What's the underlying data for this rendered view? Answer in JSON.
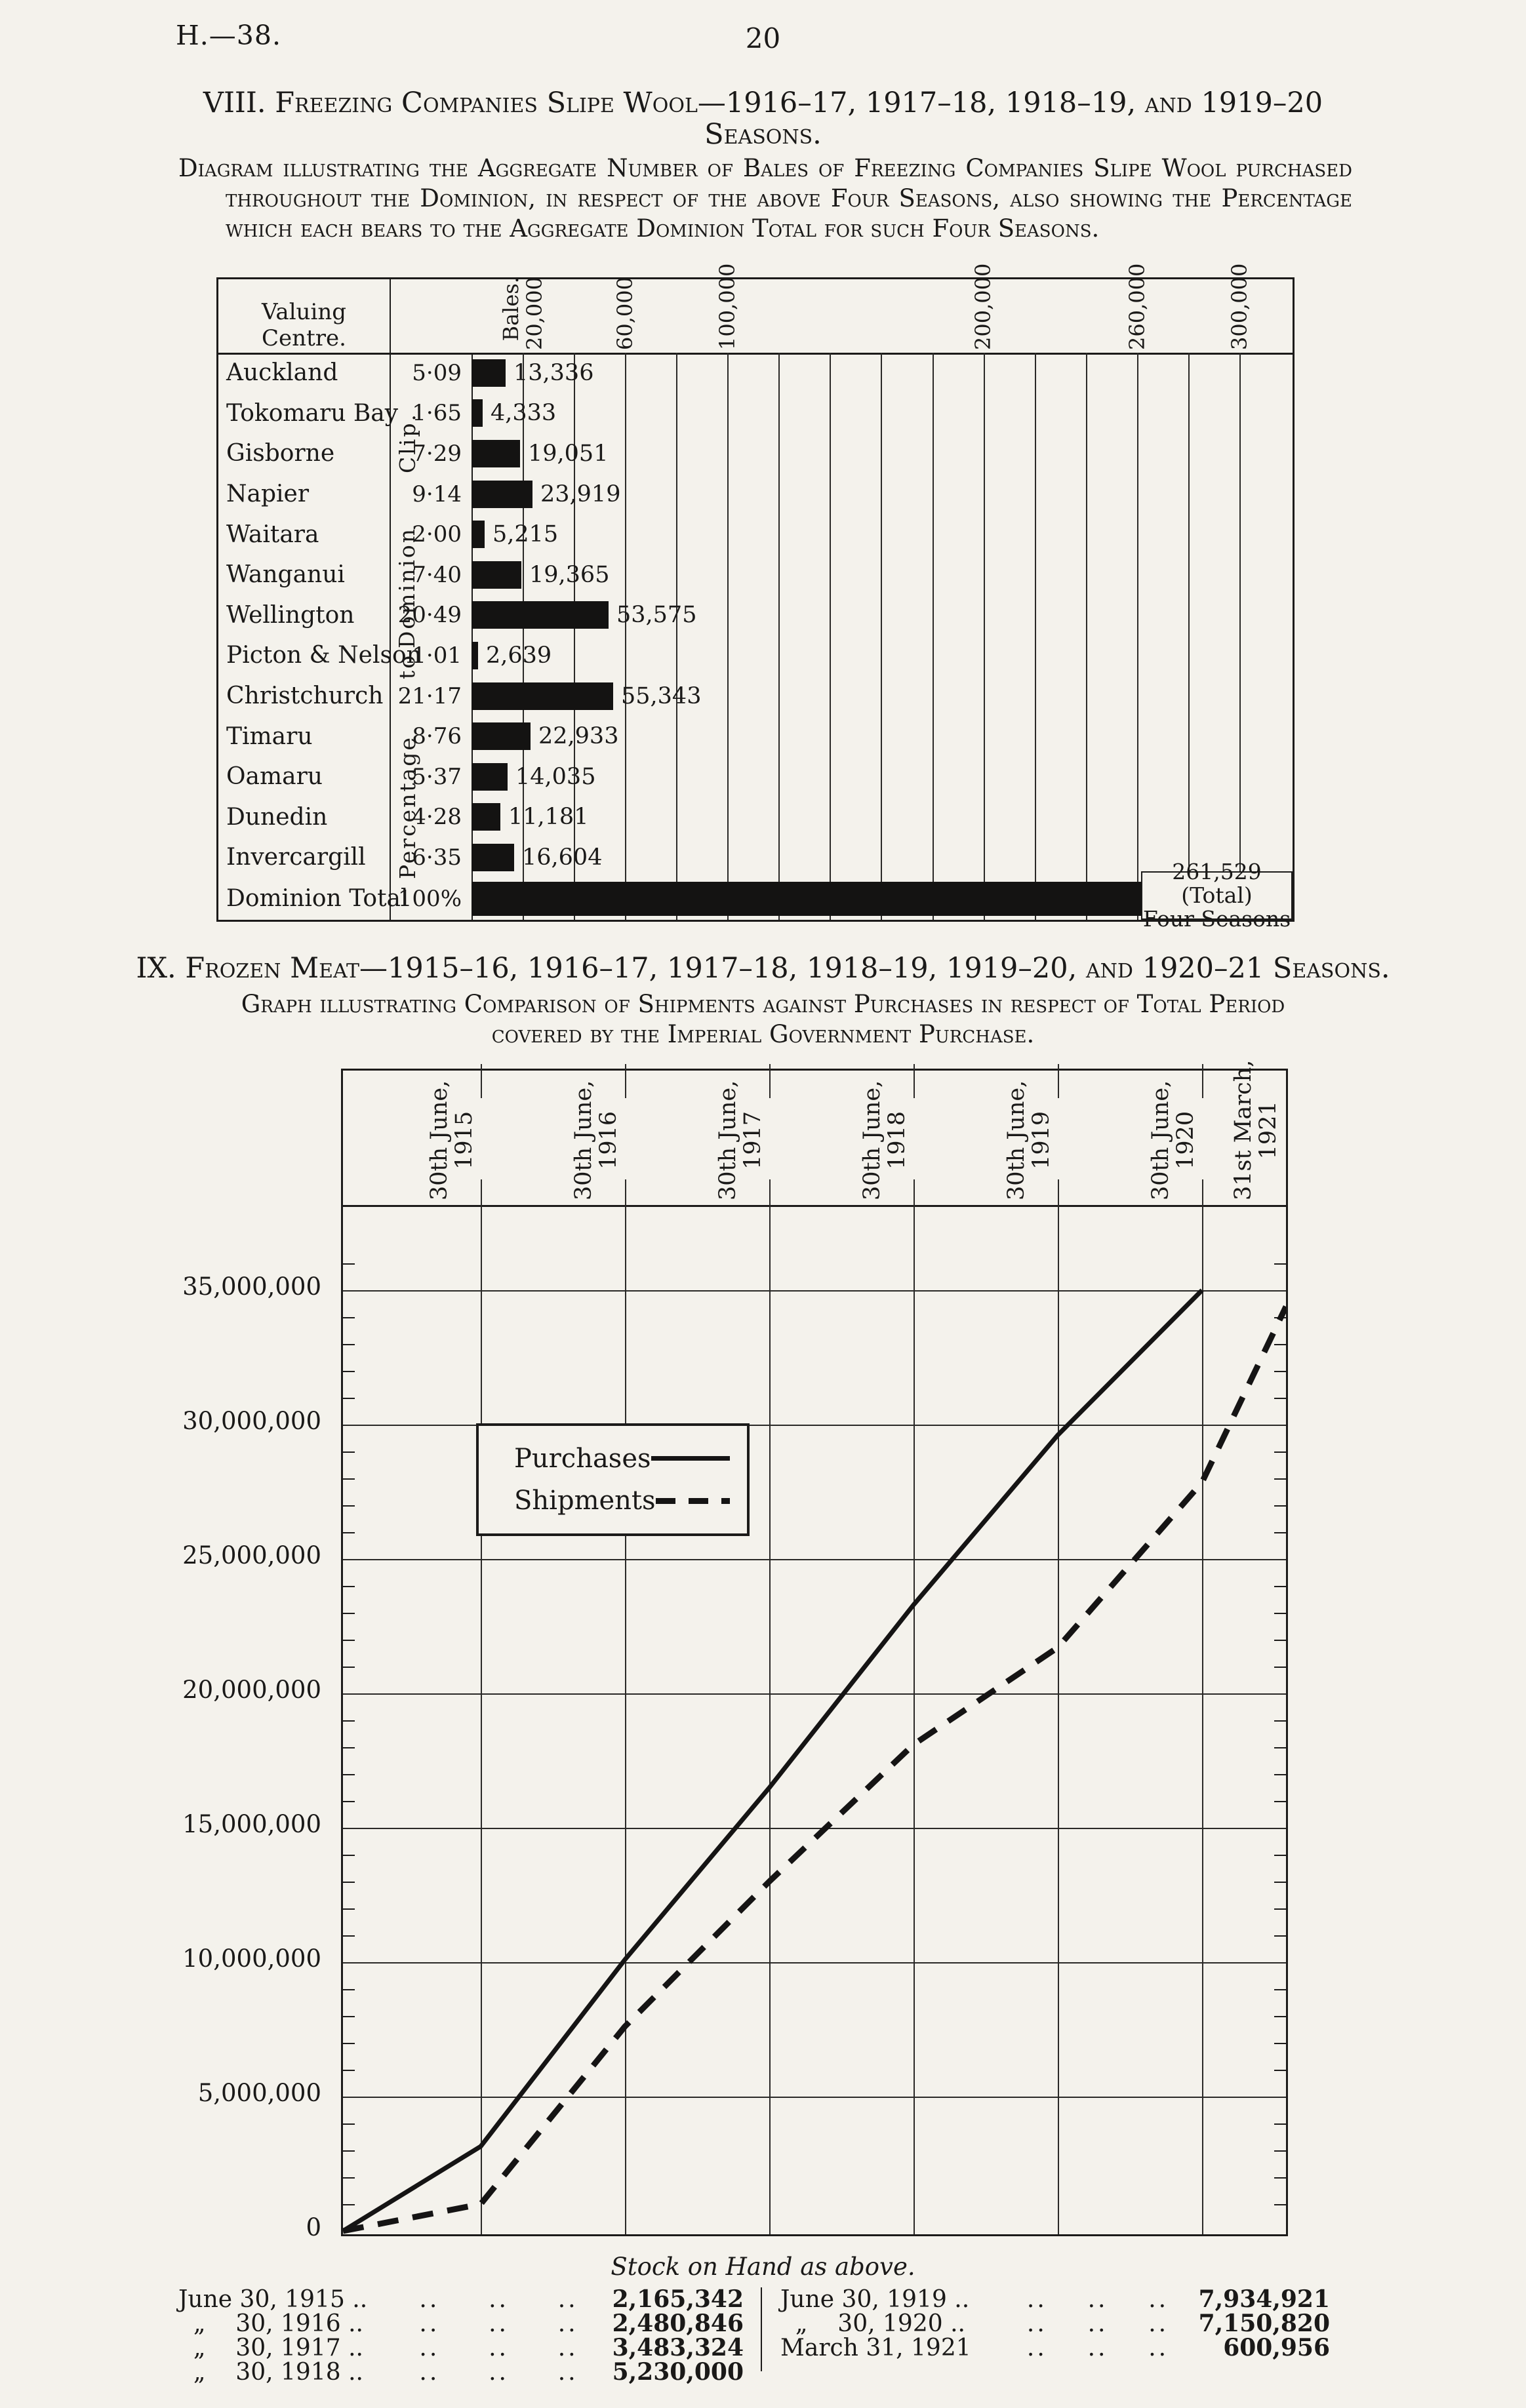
{
  "page": {
    "doc_ref": "H.—38.",
    "page_number": "20"
  },
  "section_viii": {
    "title_line1": "VIII. Freezing Companies Slipe Wool—1916–17, 1917–18, 1918–19, and 1919–20",
    "title_line2": "Seasons.",
    "description": "Diagram illustrating the Aggregate Number of Bales of Freezing Companies Slipe Wool purchased throughout the Dominion, in respect of the above Four Seasons, also showing the Percentage which each bears to the Aggregate Dominion Total for such Four Seasons."
  },
  "section_ix": {
    "title": "IX. Frozen Meat—1915–16, 1916–17, 1917–18, 1918–19, 1919–20, and 1920–21 Seasons.",
    "description_line1": "Graph illustrating Comparison of Shipments against Purchases in respect of Total Period",
    "description_line2": "covered by the Imperial Government Purchase."
  },
  "wool_chart": {
    "column_header": "Valuing Centre.",
    "side_label": "Percentage to Dominion Clip.",
    "side_label_words": [
      "Clip.",
      "Dominion",
      "to",
      "Percentage"
    ],
    "total_note_line1": "261,529 (Total)",
    "total_note_line2": "Four Seasons"
  },
  "stock_table": {
    "title": "Stock on Hand as above.",
    "leader": "..",
    "left_rows": [
      {
        "label": "June 30, 1915 ..",
        "value": "2,165,342"
      },
      {
        "label": "  „    30, 1916 ..",
        "value": "2,480,846"
      },
      {
        "label": "  „    30, 1917 ..",
        "value": "3,483,324"
      },
      {
        "label": "  „    30, 1918 ..",
        "value": "5,230,000"
      }
    ],
    "right_rows": [
      {
        "label": "June 30, 1919 ..",
        "value": "7,934,921"
      },
      {
        "label": "  „    30, 1920 ..",
        "value": "7,150,820"
      },
      {
        "label": "March 31, 1921",
        "value": "600,956"
      }
    ]
  },
  "chart_data": [
    {
      "type": "bar",
      "title": "Freezing Companies Slipe Wool — bales purchased by valuing centre, four seasons 1916–17 to 1919–20",
      "orientation": "horizontal",
      "categories": [
        "Auckland",
        "Tokomaru Bay",
        "Gisborne",
        "Napier",
        "Waitara",
        "Wanganui",
        "Wellington",
        "Picton & Nelson",
        "Christchurch",
        "Timaru",
        "Oamaru",
        "Dunedin",
        "Invercargill",
        "Dominion Total"
      ],
      "percents": [
        5.09,
        1.65,
        7.29,
        9.14,
        2.0,
        7.4,
        20.49,
        1.01,
        21.17,
        8.76,
        5.37,
        4.28,
        6.35,
        100
      ],
      "percent_labels": [
        "5·09",
        "1·65",
        "7·29",
        "9·14",
        "2·00",
        "7·40",
        "20·49",
        "1·01",
        "21·17",
        "8·76",
        "5·37",
        "4·28",
        "6·35",
        "100%"
      ],
      "values": [
        13336,
        4333,
        19051,
        23919,
        5215,
        19365,
        53575,
        2639,
        55343,
        22933,
        14035,
        11181,
        16604,
        261529
      ],
      "value_labels": [
        "13,336",
        "4,333",
        "19,051",
        "23,919",
        "5,215",
        "19,365",
        "53,575",
        "2,639",
        "55,343",
        "22,933",
        "14,035",
        "11,181",
        "16,604",
        ""
      ],
      "axis": {
        "unit_label": "Bales.",
        "tick_labels": [
          "20,000",
          "60,000",
          "100,000",
          "200,000",
          "260,000",
          "300,000"
        ],
        "tick_values": [
          20000,
          60000,
          100000,
          200000,
          260000,
          300000
        ],
        "grid_step": 20000,
        "max": 300000
      },
      "total": {
        "value": 261529,
        "note": "261,529 (Total) Four Seasons"
      }
    },
    {
      "type": "line",
      "title": "Frozen meat — shipments against purchases, Imperial Government Purchase period",
      "x_labels": [
        [
          "30th June,",
          "1915"
        ],
        [
          "30th June,",
          "1916"
        ],
        [
          "30th June,",
          "1917"
        ],
        [
          "30th June,",
          "1918"
        ],
        [
          "30th June,",
          "1919"
        ],
        [
          "30th June,",
          "1920"
        ],
        [
          "31st March,",
          "1921"
        ]
      ],
      "y_tick_labels": [
        "35,000,000",
        "30,000,000",
        "25,000,000",
        "20,000,000",
        "15,000,000",
        "10,000,000",
        "5,000,000",
        "0"
      ],
      "ylim": [
        0,
        37500000
      ],
      "grid": true,
      "legend_position": "upper-left-box",
      "series": [
        {
          "name": "Purchases",
          "style": "solid",
          "x": [
            "start",
            "1915-06-30",
            "1916-06-30",
            "1917-06-30",
            "1918-06-30",
            "1919-06-30",
            "1920-06-30"
          ],
          "values": [
            0,
            3150000,
            10100000,
            16500000,
            23300000,
            29600000,
            35000000
          ]
        },
        {
          "name": "Shipments",
          "style": "dashed",
          "x": [
            "start",
            "1915-06-30",
            "1916-06-30",
            "1917-06-30",
            "1918-06-30",
            "1919-06-30",
            "1920-06-30",
            "1921-03-31"
          ],
          "values": [
            0,
            990000,
            7620000,
            13000000,
            18100000,
            21700000,
            27850000,
            34400000
          ]
        }
      ]
    }
  ]
}
